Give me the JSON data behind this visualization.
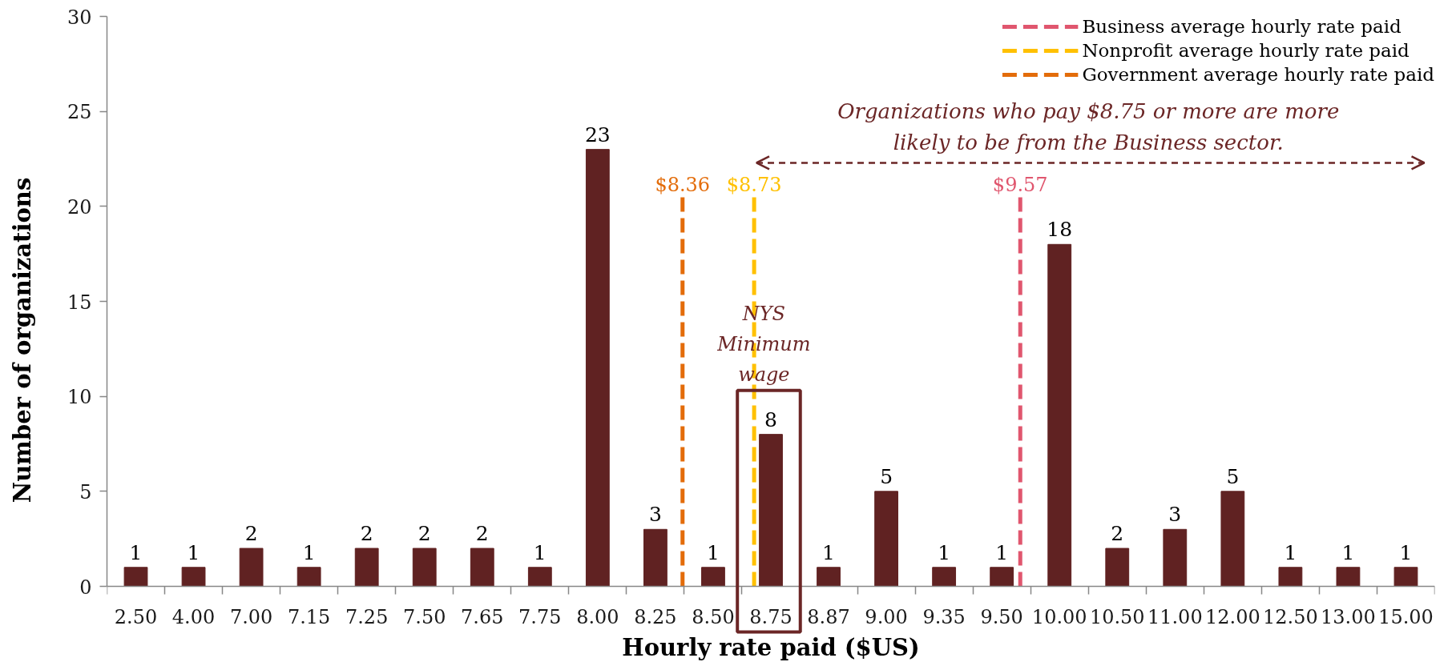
{
  "chart_data": {
    "type": "bar",
    "xlabel": "Hourly rate paid ($US)",
    "ylabel": "Number of organizations",
    "categories": [
      "2.50",
      "4.00",
      "7.00",
      "7.15",
      "7.25",
      "7.50",
      "7.65",
      "7.75",
      "8.00",
      "8.25",
      "8.50",
      "8.75",
      "8.87",
      "9.00",
      "9.35",
      "9.50",
      "10.00",
      "10.50",
      "11.00",
      "12.00",
      "12.50",
      "13.00",
      "15.00"
    ],
    "values": [
      1,
      1,
      2,
      1,
      2,
      2,
      2,
      1,
      23,
      3,
      1,
      8,
      1,
      5,
      1,
      1,
      18,
      2,
      3,
      5,
      1,
      1,
      1
    ],
    "color": "#602222",
    "ylim": [
      0,
      30
    ],
    "yticks": [
      0,
      5,
      10,
      15,
      20,
      25,
      30
    ],
    "data_labels": true,
    "annotations": [
      "Business average hourly rate paid",
      "$9.57",
      "Nonprofit average hourly rate paid",
      "$8.73",
      "Government average hourly rate paid",
      "$8.36",
      "Organizations who pay $8.75 or more are more\nlikely to be from the Business sector.",
      {
        "text": "NYS\nMinimum\nwage",
        "x": "8.75",
        "y": 8
      }
    ]
  }
}
